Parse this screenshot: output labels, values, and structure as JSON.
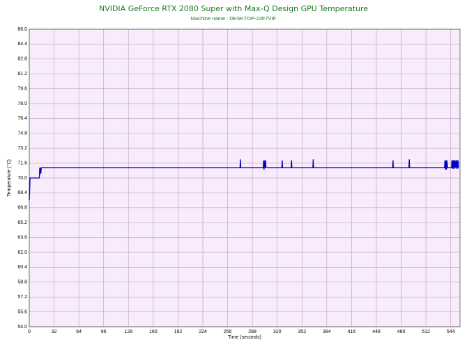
{
  "chart_data": {
    "type": "line",
    "title": "NVIDIA GeForce RTX 2080 Super with Max-Q Design GPU Temperature",
    "subtitle": "Machine name : DESKTOP-22F7VIF",
    "x_label": "Time (seconds)",
    "y_label": "Temperature (°C)",
    "x": [
      0,
      0.5,
      1,
      13,
      13.5,
      14,
      14.5,
      15,
      15.5,
      16,
      272,
      272.5,
      273,
      302,
      302.5,
      303,
      304,
      304.5,
      305,
      305.5,
      326,
      326.5,
      327,
      338,
      338.5,
      339,
      366,
      366.5,
      367,
      469,
      469.5,
      470,
      490,
      490.5,
      491,
      536,
      536.5,
      537,
      538,
      538.5,
      539,
      540,
      545,
      545.5,
      546,
      547,
      547.5,
      548,
      549,
      549.5,
      550,
      551,
      551.5,
      552,
      553,
      553.5,
      554
    ],
    "series": [
      {
        "name": "GPU Temperature",
        "color": "#0000c0",
        "values": [
          67.6,
          68.6,
          70.0,
          70.0,
          71.1,
          70.4,
          71.1,
          70.5,
          71.1,
          71.1,
          71.1,
          72.0,
          71.1,
          71.1,
          71.9,
          70.9,
          71.9,
          71.1,
          71.9,
          71.1,
          71.1,
          71.9,
          71.1,
          71.1,
          71.9,
          71.1,
          71.1,
          72.0,
          71.1,
          71.1,
          71.9,
          71.1,
          71.1,
          72.0,
          71.1,
          71.1,
          71.9,
          70.9,
          71.9,
          70.9,
          71.9,
          71.1,
          71.1,
          71.9,
          71.0,
          71.9,
          71.0,
          71.9,
          71.0,
          71.9,
          71.1,
          71.9,
          71.0,
          71.9,
          71.0,
          71.9,
          71.1
        ]
      }
    ],
    "xlim": [
      0,
      556
    ],
    "xticks": [
      0,
      32,
      64,
      96,
      128,
      160,
      192,
      224,
      256,
      288,
      320,
      352,
      384,
      416,
      448,
      480,
      512,
      544
    ],
    "ylim": [
      54,
      86
    ],
    "yticks": [
      {
        "value": 86,
        "label": "86.0"
      },
      {
        "value": 84.4,
        "label": "84.4"
      },
      {
        "value": 82.8,
        "label": "82.8"
      },
      {
        "value": 81.2,
        "label": "81.2"
      },
      {
        "value": 79.6,
        "label": "79.6"
      },
      {
        "value": 78,
        "label": "78.0"
      },
      {
        "value": 76.4,
        "label": "76.4"
      },
      {
        "value": 74.8,
        "label": "74.8"
      },
      {
        "value": 73.2,
        "label": "73.2"
      },
      {
        "value": 71.6,
        "label": "71.6"
      },
      {
        "value": 70,
        "label": "70.0"
      },
      {
        "value": 68.4,
        "label": "68.4"
      },
      {
        "value": 66.8,
        "label": "66.8"
      },
      {
        "value": 65.2,
        "label": "65.2"
      },
      {
        "value": 63.6,
        "label": "63.6"
      },
      {
        "value": 62,
        "label": "62.0"
      },
      {
        "value": 60.4,
        "label": "60.4"
      },
      {
        "value": 58.8,
        "label": "58.8"
      },
      {
        "value": 57.2,
        "label": "57.2"
      },
      {
        "value": 55.6,
        "label": "55.6"
      },
      {
        "value": 54,
        "label": "54.0"
      }
    ],
    "grid": true
  }
}
